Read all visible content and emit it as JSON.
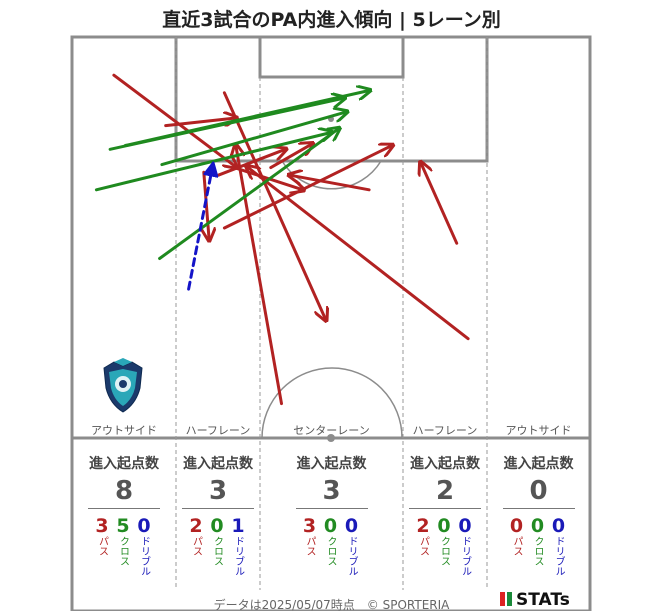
{
  "title": "直近3試合のPA内進入傾向 | 5レーン別",
  "footer": "データは2025/05/07時点　© SPORTERIA",
  "brand": "STATs",
  "colors": {
    "pass": "#b22222",
    "cross": "#1f8a1f",
    "dribble": "#1414c8",
    "pitch": "#888888"
  },
  "lanes": [
    {
      "label": "アウトサイド",
      "summary_title": "進入起点数",
      "total": "8",
      "pass": "3",
      "cross": "5",
      "dribble": "0"
    },
    {
      "label": "ハーフレーン",
      "summary_title": "進入起点数",
      "total": "3",
      "pass": "2",
      "cross": "0",
      "dribble": "1"
    },
    {
      "label": "センターレーン",
      "summary_title": "進入起点数",
      "total": "3",
      "pass": "3",
      "cross": "0",
      "dribble": "0"
    },
    {
      "label": "ハーフレーン",
      "summary_title": "進入起点数",
      "total": "2",
      "pass": "2",
      "cross": "0",
      "dribble": "0"
    },
    {
      "label": "アウトサイド",
      "summary_title": "進入起点数",
      "total": "0",
      "pass": "0",
      "cross": "0",
      "dribble": "0"
    }
  ],
  "legend_labels": {
    "pass": "パス",
    "cross": "クロス",
    "dribble": "ドリブル"
  },
  "chart_data": {
    "type": "scatter",
    "pitch_units": "meters (x: 0–68 across pitch width, y: 0–52.5 from goal line to halfway line)",
    "entries": [
      {
        "type": "pass",
        "x1": 5.5,
        "y1": 5.0,
        "x2": 21.5,
        "y2": 17.0
      },
      {
        "type": "pass",
        "x1": 12.3,
        "y1": 11.6,
        "x2": 21.5,
        "y2": 10.6
      },
      {
        "type": "pass",
        "x1": 20.0,
        "y1": 7.3,
        "x2": 33.3,
        "y2": 37.0
      },
      {
        "type": "pass",
        "x1": 21.3,
        "y1": 17.1,
        "x2": 30.3,
        "y2": 20.0
      },
      {
        "type": "pass",
        "x1": 19.2,
        "y1": 18.1,
        "x2": 28.0,
        "y2": 14.7
      },
      {
        "type": "pass",
        "x1": 26.1,
        "y1": 17.1,
        "x2": 31.5,
        "y2": 14.0
      },
      {
        "type": "pass",
        "x1": 20.0,
        "y1": 25.0,
        "x2": 42.0,
        "y2": 14.2
      },
      {
        "type": "pass",
        "x1": 17.3,
        "y1": 17.7,
        "x2": 18.0,
        "y2": 26.5
      },
      {
        "type": "pass",
        "x1": 39.0,
        "y1": 20.0,
        "x2": 28.6,
        "y2": 18.1
      },
      {
        "type": "pass",
        "x1": 50.5,
        "y1": 27.0,
        "x2": 45.8,
        "y2": 16.5
      },
      {
        "type": "pass",
        "x1": 32.6,
        "y1": 22.0,
        "x2": 32.6,
        "y2": 22.0
      },
      {
        "type": "pass",
        "x1": 52.0,
        "y1": 39.5,
        "x2": 23.0,
        "y2": 17.0
      },
      {
        "type": "pass",
        "x1": 27.5,
        "y1": 48.0,
        "x2": 21.5,
        "y2": 14.2
      },
      {
        "type": "cross",
        "x1": 3.2,
        "y1": 20.0,
        "x2": 34.0,
        "y2": 12.5
      },
      {
        "type": "cross",
        "x1": 5.0,
        "y1": 14.7,
        "x2": 35.7,
        "y2": 8.0
      },
      {
        "type": "cross",
        "x1": 7.0,
        "y1": 14.2,
        "x2": 39.0,
        "y2": 7.0
      },
      {
        "type": "cross",
        "x1": 11.8,
        "y1": 16.7,
        "x2": 36.0,
        "y2": 9.8
      },
      {
        "type": "cross",
        "x1": 11.5,
        "y1": 29.0,
        "x2": 35.0,
        "y2": 12.0
      },
      {
        "type": "dribble",
        "x1": 15.3,
        "y1": 33.0,
        "x2": 18.5,
        "y2": 16.7
      }
    ]
  }
}
